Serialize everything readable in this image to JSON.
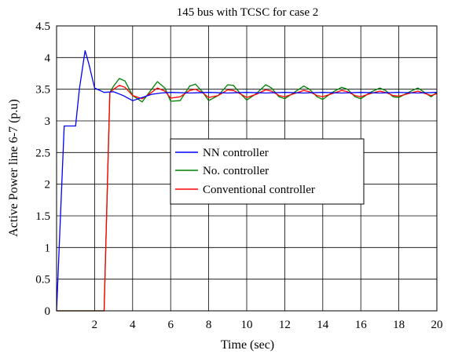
{
  "chart_data": {
    "type": "line",
    "title": "145 bus with TCSC for case 2",
    "xlabel": "Time (sec)",
    "ylabel": "Active Power line 6-7 (p.u)",
    "xlim": [
      0,
      20
    ],
    "ylim": [
      0,
      4.5
    ],
    "xticks": [
      2,
      4,
      6,
      8,
      10,
      12,
      14,
      16,
      18,
      20
    ],
    "yticks": [
      0,
      0.5,
      1,
      1.5,
      2,
      2.5,
      3,
      3.5,
      4,
      4.5
    ],
    "xtick_labels": [
      "2",
      "4",
      "6",
      "8",
      "10",
      "12",
      "14",
      "16",
      "18",
      "20"
    ],
    "ytick_labels": [
      "0",
      "0.5",
      "1",
      "1.5",
      "2",
      "2.5",
      "3",
      "3.5",
      "4",
      "4.5"
    ],
    "grid": true,
    "legend_position": "center",
    "series": [
      {
        "name": "NN controller",
        "color": "#0000ff",
        "x": [
          0,
          0.4,
          0.8,
          1.0,
          1.2,
          1.5,
          1.7,
          2.0,
          2.5,
          3.0,
          3.5,
          4.0,
          4.5,
          5.0,
          5.5,
          6.0,
          7.0,
          8.0,
          9.0,
          10.0,
          11.0,
          12.0,
          13.0,
          14.0,
          15.0,
          16.0,
          17.0,
          18.0,
          19.0,
          20.0
        ],
        "y": [
          0,
          2.92,
          2.92,
          2.92,
          3.5,
          4.11,
          3.9,
          3.52,
          3.45,
          3.46,
          3.4,
          3.32,
          3.37,
          3.42,
          3.44,
          3.45,
          3.44,
          3.45,
          3.44,
          3.45,
          3.44,
          3.45,
          3.44,
          3.45,
          3.44,
          3.45,
          3.44,
          3.45,
          3.44,
          3.45
        ]
      },
      {
        "name": "No. controller",
        "color": "#008000",
        "x": [
          0,
          2.0,
          2.3,
          2.5,
          2.8,
          3.0,
          3.3,
          3.6,
          4.0,
          4.5,
          5.0,
          5.3,
          5.7,
          6.0,
          6.5,
          7.0,
          7.3,
          7.7,
          8.0,
          8.5,
          9.0,
          9.3,
          9.7,
          10.0,
          10.5,
          11.0,
          11.3,
          11.7,
          12.0,
          12.5,
          13.0,
          13.3,
          13.7,
          14.0,
          14.5,
          15.0,
          15.3,
          15.7,
          16.0,
          16.5,
          17.0,
          17.3,
          17.7,
          18.0,
          18.5,
          19.0,
          19.3,
          19.7,
          20.0
        ],
        "y": [
          0,
          0,
          0,
          0,
          3.45,
          3.55,
          3.67,
          3.63,
          3.4,
          3.3,
          3.5,
          3.62,
          3.52,
          3.31,
          3.32,
          3.55,
          3.58,
          3.45,
          3.32,
          3.4,
          3.57,
          3.56,
          3.42,
          3.33,
          3.43,
          3.57,
          3.52,
          3.38,
          3.35,
          3.45,
          3.55,
          3.5,
          3.38,
          3.34,
          3.45,
          3.53,
          3.5,
          3.38,
          3.35,
          3.45,
          3.52,
          3.48,
          3.38,
          3.37,
          3.45,
          3.52,
          3.46,
          3.38,
          3.45
        ]
      },
      {
        "name": "Conventional controller",
        "color": "#ff0000",
        "x": [
          0,
          2.0,
          2.3,
          2.5,
          2.8,
          3.0,
          3.3,
          3.6,
          4.0,
          4.5,
          5.0,
          5.3,
          5.7,
          6.0,
          6.5,
          7.0,
          7.3,
          7.7,
          8.0,
          8.5,
          9.0,
          9.3,
          9.7,
          10.0,
          10.5,
          11.0,
          11.3,
          11.7,
          12.0,
          12.5,
          13.0,
          13.3,
          13.7,
          14.0,
          14.5,
          15.0,
          15.3,
          15.7,
          16.0,
          16.5,
          17.0,
          17.3,
          17.7,
          18.0,
          18.5,
          19.0,
          19.3,
          19.7,
          20.0
        ],
        "y": [
          0,
          0,
          0,
          0,
          3.45,
          3.5,
          3.56,
          3.53,
          3.4,
          3.35,
          3.45,
          3.52,
          3.47,
          3.36,
          3.38,
          3.48,
          3.5,
          3.44,
          3.37,
          3.4,
          3.49,
          3.48,
          3.42,
          3.37,
          3.42,
          3.49,
          3.47,
          3.4,
          3.38,
          3.43,
          3.48,
          3.46,
          3.4,
          3.38,
          3.43,
          3.48,
          3.46,
          3.4,
          3.38,
          3.43,
          3.47,
          3.45,
          3.4,
          3.39,
          3.43,
          3.47,
          3.44,
          3.4,
          3.43
        ]
      }
    ]
  }
}
